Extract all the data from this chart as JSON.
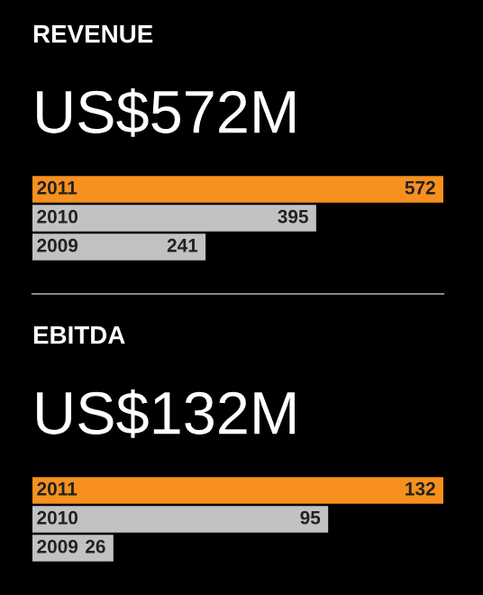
{
  "chart_data": [
    {
      "type": "bar",
      "orientation": "horizontal",
      "title": "REVENUE",
      "subtitle": "US$572M",
      "categories": [
        "2011",
        "2010",
        "2009"
      ],
      "values": [
        572,
        395,
        241
      ],
      "colors": [
        "#f7901e",
        "#c2c2c4",
        "#c2c2c4"
      ],
      "data_labels": true
    },
    {
      "type": "bar",
      "orientation": "horizontal",
      "title": "EBITDA",
      "subtitle": "US$132M",
      "categories": [
        "2011",
        "2010",
        "2009"
      ],
      "values": [
        132,
        95,
        26
      ],
      "colors": [
        "#f7901e",
        "#c2c2c4",
        "#c2c2c4"
      ],
      "data_labels": true
    }
  ]
}
